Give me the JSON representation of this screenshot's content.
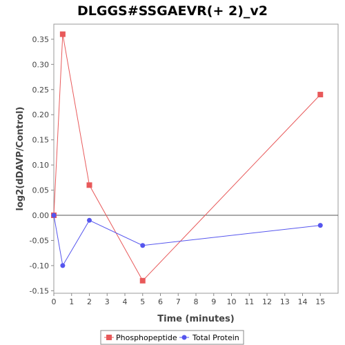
{
  "chart_data": {
    "type": "line",
    "title": "DLGGS#SSGAEVR(+ 2)_v2",
    "xlabel": "Time (minutes)",
    "ylabel": "log2(dDAVP/Control)",
    "xlim": [
      0,
      16
    ],
    "ylim": [
      -0.155,
      0.38
    ],
    "xticks": [
      0,
      1,
      2,
      3,
      4,
      5,
      6,
      7,
      8,
      9,
      10,
      11,
      12,
      13,
      14,
      15
    ],
    "yticks": [
      -0.15,
      -0.1,
      -0.05,
      0.0,
      0.05,
      0.1,
      0.15,
      0.2,
      0.25,
      0.3,
      0.35
    ],
    "ytick_labels": [
      "-0.15",
      "-0.10",
      "-0.05",
      "0.00",
      "0.05",
      "0.10",
      "0.15",
      "0.20",
      "0.25",
      "0.30",
      "0.35"
    ],
    "zero_line": true,
    "grid": false,
    "legend_position": "bottom",
    "series": [
      {
        "name": "Phosphopeptide",
        "color": "#e8595a",
        "marker": "square",
        "x": [
          0,
          0.5,
          2,
          5,
          15
        ],
        "y": [
          0.0,
          0.36,
          0.06,
          -0.13,
          0.24
        ]
      },
      {
        "name": "Total Protein",
        "color": "#5555ee",
        "marker": "circle",
        "x": [
          0,
          0.5,
          2,
          5,
          15
        ],
        "y": [
          0.0,
          -0.1,
          -0.01,
          -0.06,
          -0.02
        ]
      }
    ]
  }
}
